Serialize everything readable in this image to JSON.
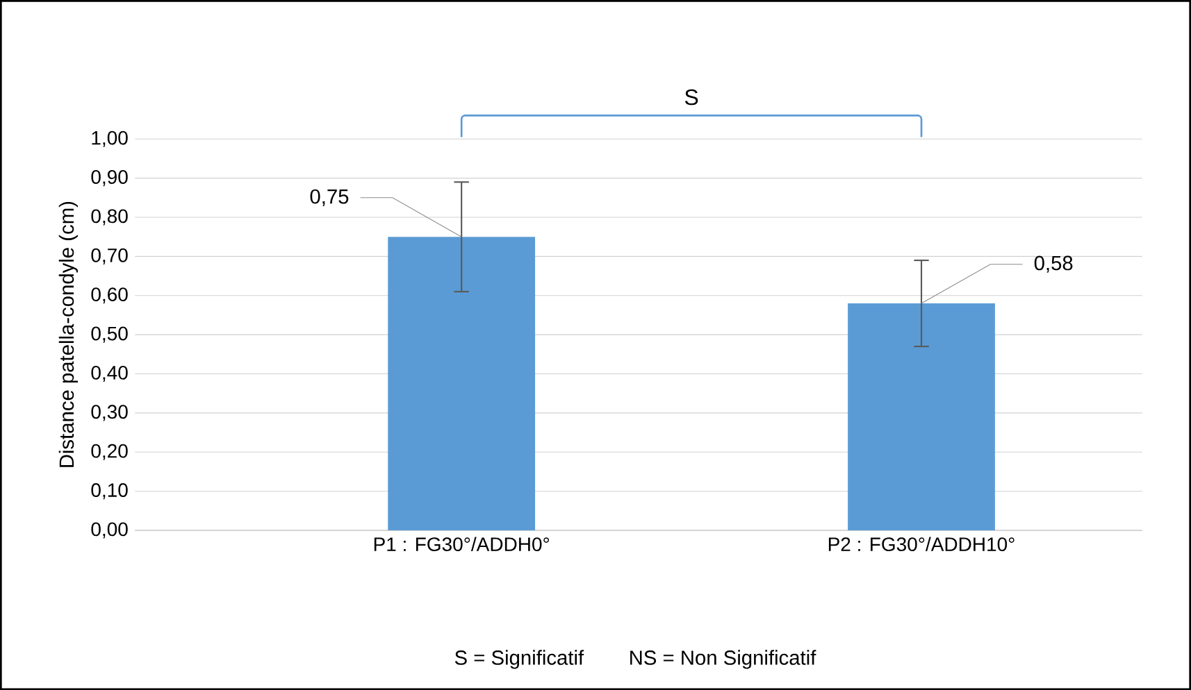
{
  "chart_data": {
    "type": "bar",
    "ylabel": "Distance patella-condyle (cm)",
    "categories": [
      "P1 : FG30°/ADDH0°",
      "P2 : FG30°/ADDH10°"
    ],
    "values": [
      0.75,
      0.58
    ],
    "errors": [
      0.14,
      0.11
    ],
    "value_labels": [
      "0,75",
      "0,58"
    ],
    "color": "#5b9bd5",
    "ylim": [
      0,
      1
    ],
    "yticks": [
      {
        "value": 0,
        "label": "0,00"
      },
      {
        "value": 0.1,
        "label": "0,10"
      },
      {
        "value": 0.2,
        "label": "0,20"
      },
      {
        "value": 0.3,
        "label": "0,30"
      },
      {
        "value": 0.4,
        "label": "0,40"
      },
      {
        "value": 0.5,
        "label": "0,50"
      },
      {
        "value": 0.6,
        "label": "0,60"
      },
      {
        "value": 0.7,
        "label": "0,70"
      },
      {
        "value": 0.8,
        "label": "0,80"
      },
      {
        "value": 0.9,
        "label": "0,90"
      },
      {
        "value": 1,
        "label": "1,00"
      }
    ],
    "grid": "y",
    "annotations": [
      "S",
      "S = Significatif",
      "NS = Non Significatif"
    ]
  }
}
